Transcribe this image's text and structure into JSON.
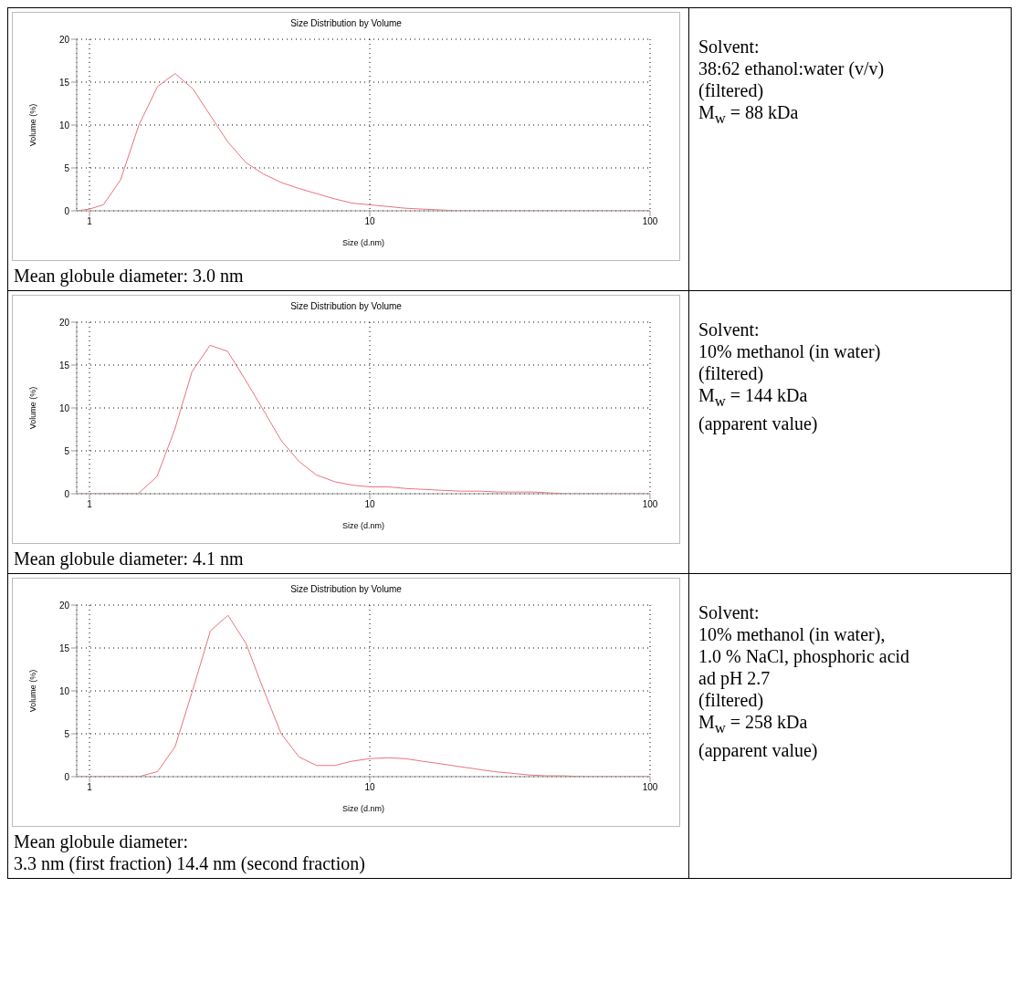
{
  "chart_data": [
    {
      "type": "line",
      "title": "Size Distribution by Volume",
      "xlabel": "Size (d.nm)",
      "ylabel": "Volume (%)",
      "log": "x",
      "xlim": [
        0.9,
        100
      ],
      "xticks": [
        1,
        10,
        100
      ],
      "ylim": [
        0,
        20
      ],
      "yticks": [
        0,
        5,
        10,
        15,
        20
      ],
      "grid": true,
      "marker": "none",
      "line_style": "solid",
      "annotations": [
        "Mean globule diameter: 3.0 nm"
      ],
      "series": [
        {
          "color": "#e8747c",
          "x": [
            0.9,
            1,
            1.12,
            1.29,
            1.5,
            1.75,
            2.02,
            2.34,
            2.7,
            3.12,
            3.62,
            4.17,
            4.83,
            5.59,
            6.46,
            7.48,
            8.64,
            10,
            11.6,
            13.4,
            15.4,
            17.9,
            20.6,
            100
          ],
          "values": [
            0,
            0.2,
            0.7,
            3.6,
            10,
            14.5,
            16,
            14.2,
            11.1,
            8,
            5.6,
            4.3,
            3.3,
            2.6,
            2,
            1.4,
            0.9,
            0.7,
            0.5,
            0.3,
            0.2,
            0.1,
            0,
            0
          ]
        }
      ]
    },
    {
      "type": "other",
      "annotations": [
        "Solvent:",
        "38:62 ethanol:water (v/v)",
        "(filtered)",
        "M$_{w}$ = 88 kDa"
      ]
    },
    {
      "type": "line",
      "title": "Size Distribution by Volume",
      "xlabel": "Size (d.nm)",
      "ylabel": "Volume (%)",
      "log": "x",
      "xlim": [
        0.9,
        100
      ],
      "xticks": [
        1,
        10,
        100
      ],
      "ylim": [
        0,
        20
      ],
      "yticks": [
        0,
        5,
        10,
        15,
        20
      ],
      "grid": true,
      "marker": "none",
      "line_style": "solid",
      "annotations": [
        "Mean globule diameter: 4.1 nm"
      ],
      "series": [
        {
          "color": "#e8747c",
          "x": [
            0.9,
            1.49,
            1.74,
            2.01,
            2.32,
            2.69,
            3.11,
            3.61,
            4.18,
            4.83,
            5.58,
            6.44,
            7.5,
            8.68,
            10,
            11.6,
            13.6,
            15.7,
            18.1,
            21.1,
            24.6,
            28.7,
            32.8,
            38.3,
            44,
            50.8,
            100
          ],
          "values": [
            0,
            0,
            2,
            7.4,
            14.2,
            17.3,
            16.6,
            13.2,
            9.7,
            6.2,
            3.8,
            2.2,
            1.4,
            1,
            0.8,
            0.8,
            0.6,
            0.5,
            0.4,
            0.3,
            0.3,
            0.2,
            0.2,
            0.2,
            0.1,
            0,
            0
          ]
        }
      ]
    },
    {
      "type": "other",
      "annotations": [
        "Solvent:",
        "10% methanol (in water)",
        "(filtered)",
        "M$_{w}$ = 144 kDa",
        "(apparent value)"
      ]
    },
    {
      "type": "line",
      "title": "Size Distribution by Volume",
      "xlabel": "Size (d.nm)",
      "ylabel": "Volume (%)",
      "log": "x",
      "xlim": [
        0.9,
        100
      ],
      "xticks": [
        1,
        10,
        100
      ],
      "ylim": [
        0,
        20
      ],
      "yticks": [
        0,
        5,
        10,
        15,
        20
      ],
      "grid": true,
      "marker": "none",
      "line_style": "solid",
      "annotations": [
        "Mean globule diameter:",
        "3.3 nm (first fraction) 14.4 nm (second fraction)"
      ],
      "series": [
        {
          "color": "#e8747c",
          "x": [
            0.9,
            1.5,
            1.75,
            2.02,
            2.34,
            2.7,
            3.12,
            3.62,
            4.17,
            4.83,
            5.59,
            6.46,
            7.48,
            8.64,
            10,
            11.6,
            13.4,
            15.4,
            17.9,
            20.6,
            23.9,
            27.6,
            31.9,
            36.9,
            42.7,
            49.4,
            57,
            100
          ],
          "values": [
            0,
            0,
            0.6,
            3.5,
            10.2,
            17,
            18.8,
            15.5,
            10.2,
            5,
            2.3,
            1.3,
            1.3,
            1.8,
            2.1,
            2.2,
            2.1,
            1.8,
            1.5,
            1.2,
            0.9,
            0.6,
            0.4,
            0.2,
            0.1,
            0.1,
            0,
            0
          ]
        }
      ]
    },
    {
      "type": "other",
      "annotations": [
        "Solvent:",
        "10% methanol (in water),",
        "1.0 % NaCl, phosphoric acid",
        "ad pH 2.7",
        "(filtered)",
        "M$_{w}$ = 258 kDa",
        "(apparent value)"
      ]
    }
  ]
}
